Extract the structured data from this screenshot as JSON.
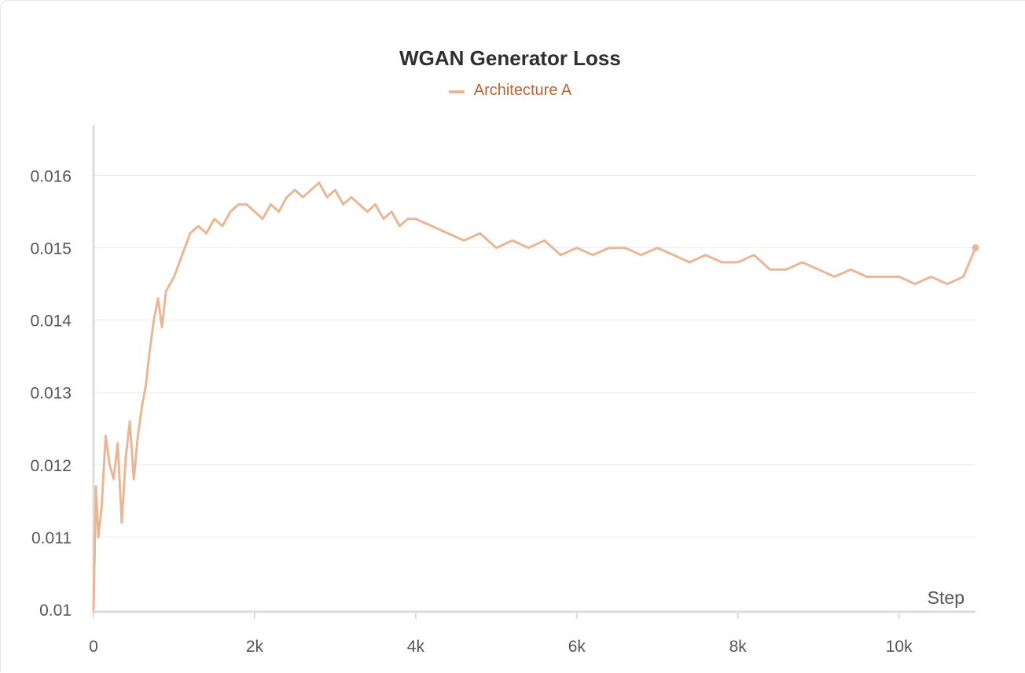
{
  "chart_data": {
    "type": "line",
    "title": "WGAN Generator Loss",
    "xlabel": "Step",
    "ylabel": "",
    "xlim": [
      0,
      10950
    ],
    "ylim": [
      0.01,
      0.0167
    ],
    "x_ticks": [
      0,
      2000,
      4000,
      6000,
      8000,
      10000
    ],
    "x_tick_labels": [
      "0",
      "2k",
      "4k",
      "6k",
      "8k",
      "10k"
    ],
    "y_ticks": [
      0.01,
      0.011,
      0.012,
      0.013,
      0.014,
      0.015,
      0.016
    ],
    "y_tick_labels": [
      "0.01",
      "0.011",
      "0.012",
      "0.013",
      "0.014",
      "0.015",
      "0.016"
    ],
    "grid": true,
    "legend_position": "top-center",
    "series": [
      {
        "name": "Architecture A",
        "color": "#e9b796",
        "label_color": "#c0622d",
        "points": [
          [
            0,
            0.01
          ],
          [
            30,
            0.0117
          ],
          [
            60,
            0.011
          ],
          [
            100,
            0.0114
          ],
          [
            150,
            0.0124
          ],
          [
            200,
            0.012
          ],
          [
            250,
            0.0118
          ],
          [
            300,
            0.0123
          ],
          [
            350,
            0.0112
          ],
          [
            400,
            0.0121
          ],
          [
            450,
            0.0126
          ],
          [
            500,
            0.0118
          ],
          [
            550,
            0.0124
          ],
          [
            600,
            0.0128
          ],
          [
            650,
            0.0131
          ],
          [
            700,
            0.0136
          ],
          [
            750,
            0.014
          ],
          [
            800,
            0.0143
          ],
          [
            850,
            0.0139
          ],
          [
            900,
            0.0144
          ],
          [
            1000,
            0.0146
          ],
          [
            1100,
            0.0149
          ],
          [
            1200,
            0.0152
          ],
          [
            1300,
            0.0153
          ],
          [
            1400,
            0.0152
          ],
          [
            1500,
            0.0154
          ],
          [
            1600,
            0.0153
          ],
          [
            1700,
            0.0155
          ],
          [
            1800,
            0.0156
          ],
          [
            1900,
            0.0156
          ],
          [
            2000,
            0.0155
          ],
          [
            2100,
            0.0154
          ],
          [
            2200,
            0.0156
          ],
          [
            2300,
            0.0155
          ],
          [
            2400,
            0.0157
          ],
          [
            2500,
            0.0158
          ],
          [
            2600,
            0.0157
          ],
          [
            2700,
            0.0158
          ],
          [
            2800,
            0.0159
          ],
          [
            2900,
            0.0157
          ],
          [
            3000,
            0.0158
          ],
          [
            3100,
            0.0156
          ],
          [
            3200,
            0.0157
          ],
          [
            3300,
            0.0156
          ],
          [
            3400,
            0.0155
          ],
          [
            3500,
            0.0156
          ],
          [
            3600,
            0.0154
          ],
          [
            3700,
            0.0155
          ],
          [
            3800,
            0.0153
          ],
          [
            3900,
            0.0154
          ],
          [
            4000,
            0.0154
          ],
          [
            4200,
            0.0153
          ],
          [
            4400,
            0.0152
          ],
          [
            4600,
            0.0151
          ],
          [
            4800,
            0.0152
          ],
          [
            5000,
            0.015
          ],
          [
            5200,
            0.0151
          ],
          [
            5400,
            0.015
          ],
          [
            5600,
            0.0151
          ],
          [
            5800,
            0.0149
          ],
          [
            6000,
            0.015
          ],
          [
            6200,
            0.0149
          ],
          [
            6400,
            0.015
          ],
          [
            6600,
            0.015
          ],
          [
            6800,
            0.0149
          ],
          [
            7000,
            0.015
          ],
          [
            7200,
            0.0149
          ],
          [
            7400,
            0.0148
          ],
          [
            7600,
            0.0149
          ],
          [
            7800,
            0.0148
          ],
          [
            8000,
            0.0148
          ],
          [
            8200,
            0.0149
          ],
          [
            8400,
            0.0147
          ],
          [
            8600,
            0.0147
          ],
          [
            8800,
            0.0148
          ],
          [
            9000,
            0.0147
          ],
          [
            9200,
            0.0146
          ],
          [
            9400,
            0.0147
          ],
          [
            9600,
            0.0146
          ],
          [
            9800,
            0.0146
          ],
          [
            10000,
            0.0146
          ],
          [
            10200,
            0.0145
          ],
          [
            10400,
            0.0146
          ],
          [
            10600,
            0.0145
          ],
          [
            10800,
            0.0146
          ],
          [
            10950,
            0.015
          ]
        ]
      }
    ]
  }
}
